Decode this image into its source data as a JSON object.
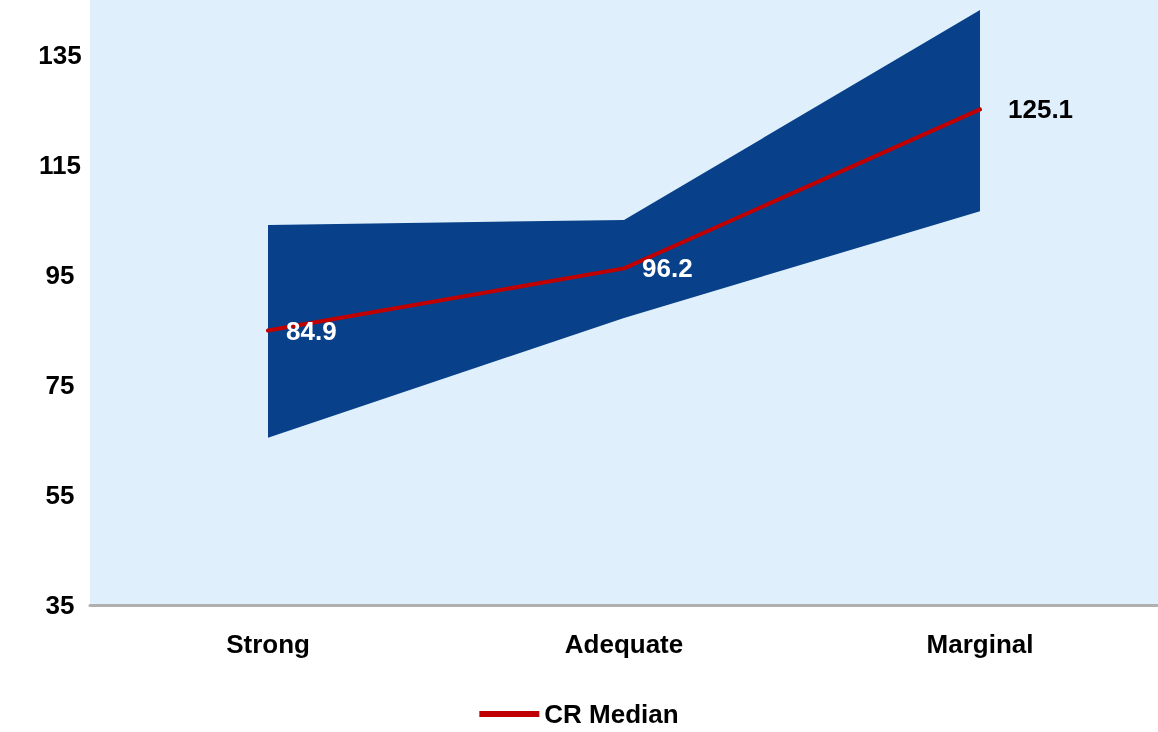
{
  "chart_data": {
    "type": "line",
    "categories": [
      "Strong",
      "Adequate",
      "Marginal"
    ],
    "series": [
      {
        "name": "CR Median",
        "color": "#c00000",
        "values": [
          84.9,
          96.2,
          125.1
        ],
        "lower": [
          65.4,
          87.2,
          106.6
        ],
        "upper": [
          104.1,
          105.0,
          143.2
        ]
      }
    ],
    "ylim": [
      35,
      145
    ],
    "yticks": [
      35,
      55,
      75,
      95,
      115,
      135
    ],
    "grid": false,
    "legend": "bottom",
    "marker": "none",
    "line_style": "solid",
    "data_labels": true
  }
}
